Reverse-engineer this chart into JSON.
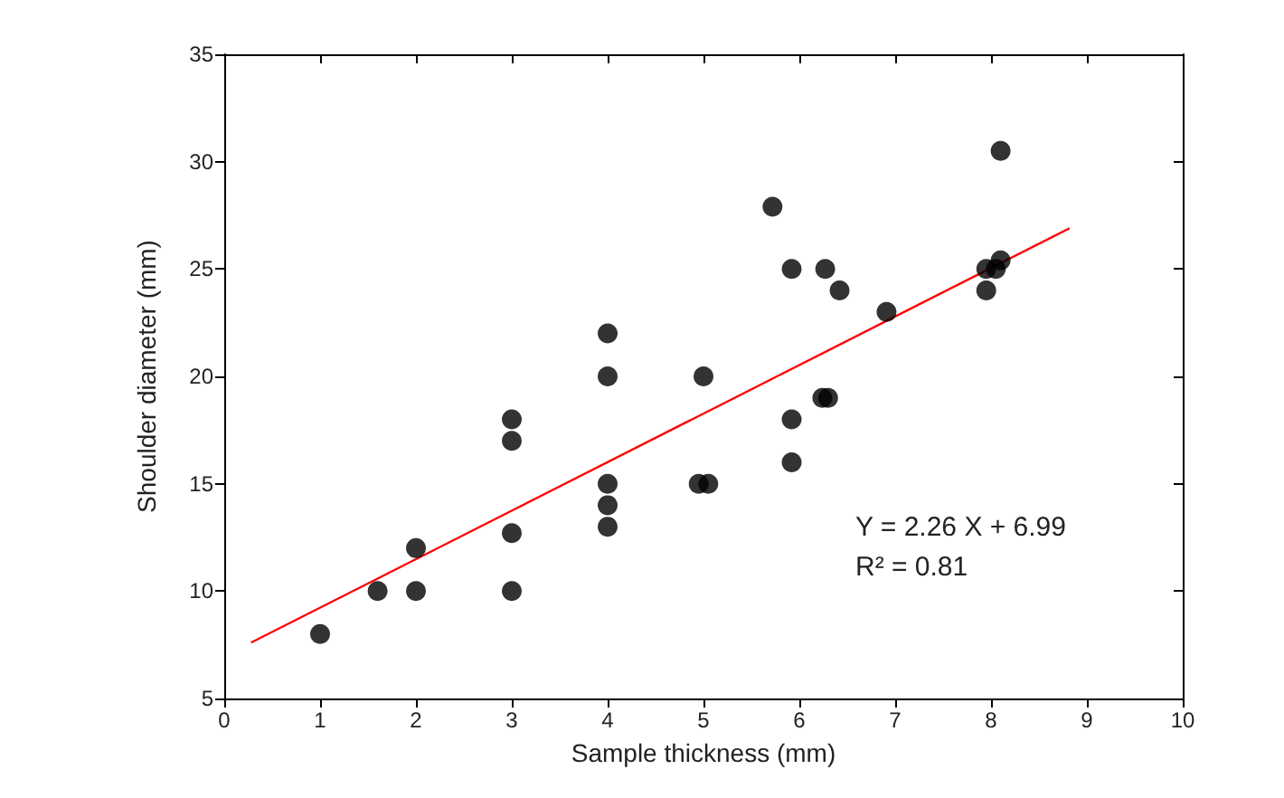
{
  "chart_data": {
    "type": "scatter",
    "xlabel": "Sample thickness (mm)",
    "ylabel": "Shoulder diameter (mm)",
    "xlim": [
      0,
      10
    ],
    "xticks": [
      0,
      1,
      2,
      3,
      4,
      5,
      6,
      7,
      8,
      9,
      10
    ],
    "ylim": [
      5,
      35
    ],
    "yticks": [
      5,
      10,
      15,
      20,
      25,
      30,
      35
    ],
    "grid": false,
    "marker": "circle",
    "annotations": [
      "Y = 2.26 X + 6.99",
      "R² = 0.81"
    ],
    "series": [
      {
        "color": "#000000",
        "x": [
          1,
          1.6,
          2,
          2,
          3,
          3,
          3,
          3,
          4,
          4,
          4,
          4,
          4,
          4.95,
          5.05,
          5,
          5.72,
          5.92,
          6.27,
          6.42,
          6.91,
          8.1,
          7.95,
          8.05,
          8.1,
          7.95,
          5.92,
          5.92,
          6.24,
          6.3
        ],
        "values": [
          8,
          10,
          10,
          12,
          18,
          17,
          12.7,
          10,
          22,
          20,
          15,
          14,
          13,
          15,
          15,
          20,
          27.9,
          25,
          25,
          24,
          23,
          30.5,
          25,
          25,
          25.4,
          24,
          18,
          16,
          19,
          19
        ]
      },
      {
        "type": "line",
        "color": "#ff0000",
        "marker": "none",
        "x": [
          0.28,
          8.82
        ],
        "values": [
          7.6,
          26.9
        ]
      }
    ]
  }
}
